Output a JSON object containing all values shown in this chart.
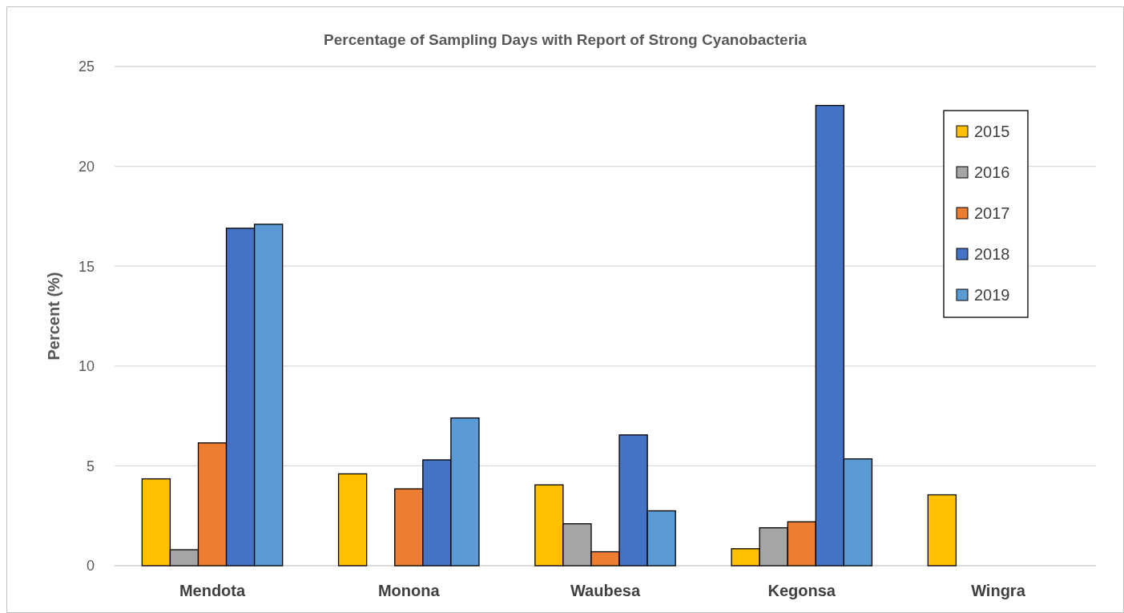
{
  "chart_data": {
    "type": "bar",
    "title": "Percentage of Sampling Days with Report of Strong Cyanobacteria",
    "ylabel": "Percent (%)",
    "categories": [
      "Mendota",
      "Monona",
      "Waubesa",
      "Kegonsa",
      "Wingra"
    ],
    "series": [
      {
        "name": "2015",
        "color": "#ffc000",
        "values": [
          4.35,
          4.6,
          4.05,
          0.85,
          3.55
        ]
      },
      {
        "name": "2016",
        "color": "#a5a5a5",
        "values": [
          0.8,
          null,
          2.1,
          1.9,
          null
        ]
      },
      {
        "name": "2017",
        "color": "#ed7d31",
        "values": [
          6.15,
          3.85,
          0.7,
          2.2,
          null
        ]
      },
      {
        "name": "2018",
        "color": "#4472c4",
        "values": [
          16.9,
          5.3,
          6.55,
          23.05,
          null
        ]
      },
      {
        "name": "2019",
        "color": "#5b9bd5",
        "values": [
          17.1,
          7.4,
          2.75,
          5.35,
          null
        ]
      }
    ],
    "ylim": [
      0,
      25
    ],
    "yticks": [
      0,
      5,
      10,
      15,
      20,
      25
    ],
    "grid": "y",
    "legend": "top right"
  }
}
